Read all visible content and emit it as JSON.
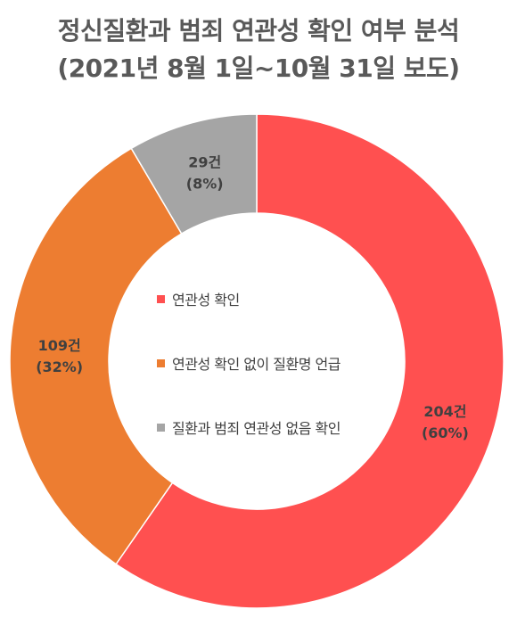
{
  "title": {
    "line1": "정신질환과 범죄 연관성 확인 여부 분석",
    "line2": "(2021년 8월 1일~10월 31일 보도)"
  },
  "chart_data": {
    "type": "pie",
    "style": "donut",
    "categories": [
      "연관성 확인",
      "연관성 확인 없이 질환명 언급",
      "질환과 범죄 연관성 없음 확인"
    ],
    "values": [
      204,
      109,
      29
    ],
    "unit": "건",
    "percent_labels": [
      "(60%)",
      "(32%)",
      "(8%)"
    ],
    "count_labels": [
      "204건",
      "109건",
      "29건"
    ],
    "colors": [
      "#FF5050",
      "#ED7D31",
      "#A5A5A5"
    ],
    "legend_placement": "center"
  }
}
